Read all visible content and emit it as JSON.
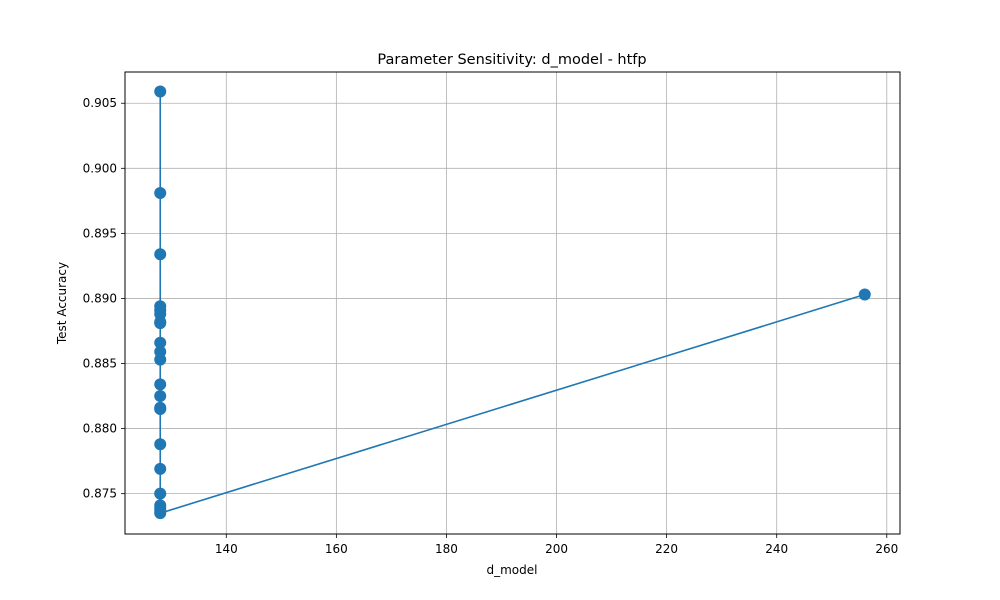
{
  "chart_data": {
    "type": "line",
    "title": "Parameter Sensitivity: d_model - htfp",
    "xlabel": "d_model",
    "ylabel": "Test Accuracy",
    "xlim": [
      121.6,
      262.4
    ],
    "ylim": [
      0.8719,
      0.9074
    ],
    "xticks": [
      140,
      160,
      180,
      200,
      220,
      240,
      260
    ],
    "xtick_labels": [
      "140",
      "160",
      "180",
      "200",
      "220",
      "240",
      "260"
    ],
    "yticks": [
      0.875,
      0.88,
      0.885,
      0.89,
      0.895,
      0.9,
      0.905
    ],
    "ytick_labels": [
      "0.875",
      "0.880",
      "0.885",
      "0.890",
      "0.895",
      "0.900",
      "0.905"
    ],
    "grid": true,
    "legend": "none",
    "series": [
      {
        "color": "#1f77b4",
        "marker": "circle",
        "x": [
          128,
          128,
          128,
          128,
          128,
          128,
          128,
          128,
          128,
          128,
          128,
          128,
          128,
          128,
          128,
          128,
          128,
          128,
          128,
          128,
          128,
          128,
          256
        ],
        "y": [
          0.9059,
          0.8981,
          0.8934,
          0.8894,
          0.8891,
          0.8888,
          0.8882,
          0.8881,
          0.8866,
          0.8859,
          0.8853,
          0.8834,
          0.8825,
          0.8816,
          0.8815,
          0.8788,
          0.8769,
          0.875,
          0.8741,
          0.8739,
          0.8737,
          0.8735,
          0.8903
        ]
      }
    ]
  }
}
